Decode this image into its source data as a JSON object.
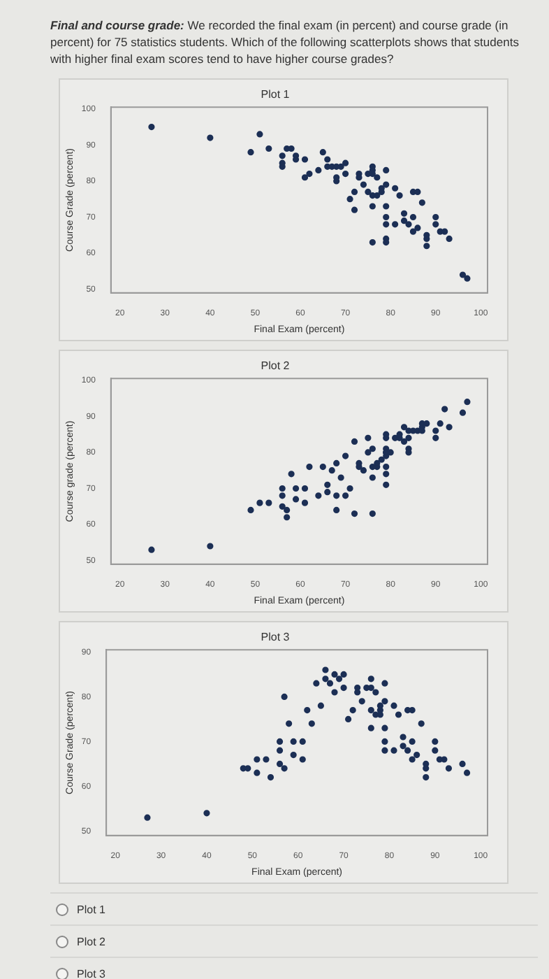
{
  "chart_data": [
    {
      "type": "other",
      "title": "Final and course grade:",
      "annotations": [
        "We recorded the final exam (in percent) and course grade (in percent) for 75 statistics students. Which of the following scatterplots shows that students with higher final exam scores tend to have higher course grades?"
      ]
    },
    {
      "type": "scatter",
      "title": "Plot 1",
      "xlabel": "Final Exam (percent)",
      "ylabel": "Course Grade (percent)",
      "color": "#1c2f55",
      "marker": "circle",
      "grid": false,
      "xlim": [
        18,
        101.5
      ],
      "xticks": [
        20,
        30,
        40,
        50,
        60,
        70,
        80,
        90,
        100
      ],
      "ylim": [
        49,
        100.5
      ],
      "yticks": [
        50,
        60,
        70,
        80,
        90,
        100
      ],
      "x": [
        27,
        40,
        49,
        51,
        53,
        56,
        56,
        56,
        57,
        58,
        59,
        59,
        61,
        61,
        62,
        64,
        65,
        66,
        66,
        67,
        68,
        69,
        68,
        68,
        70,
        70,
        71,
        72,
        72,
        73,
        73,
        74,
        75,
        76,
        76,
        76,
        75,
        76,
        77,
        77,
        78,
        78,
        76,
        76,
        79,
        79,
        79,
        79,
        79,
        79,
        79,
        81,
        81,
        82,
        83,
        83,
        84,
        85,
        86,
        85,
        85,
        86,
        87,
        88,
        88,
        88,
        90,
        90,
        91,
        92,
        93,
        96,
        97
      ],
      "values": [
        95,
        92,
        88,
        93,
        89,
        87,
        85,
        84,
        89,
        89,
        87,
        86,
        86,
        81,
        82,
        83,
        88,
        86,
        84,
        84,
        84,
        84,
        81,
        80,
        85,
        82,
        75,
        77,
        72,
        82,
        81,
        79,
        82,
        82,
        84,
        83,
        77,
        76,
        76,
        81,
        78,
        77,
        73,
        63,
        83,
        79,
        73,
        70,
        68,
        64,
        63,
        78,
        68,
        76,
        71,
        69,
        68,
        77,
        77,
        70,
        66,
        67,
        74,
        65,
        64,
        62,
        70,
        68,
        66,
        66,
        64,
        54,
        53
      ]
    },
    {
      "type": "scatter",
      "title": "Plot 2",
      "xlabel": "Final Exam (percent)",
      "ylabel": "Course grade (percent)",
      "color": "#1c2f55",
      "marker": "circle",
      "grid": false,
      "xlim": [
        18,
        101.5
      ],
      "xticks": [
        20,
        30,
        40,
        50,
        60,
        70,
        80,
        90,
        100
      ],
      "ylim": [
        49,
        100.5
      ],
      "yticks": [
        50,
        60,
        70,
        80,
        90,
        100
      ],
      "x": [
        27,
        40,
        49,
        51,
        53,
        56,
        56,
        56,
        57,
        57,
        58,
        59,
        59,
        61,
        61,
        62,
        64,
        65,
        66,
        66,
        67,
        68,
        68,
        68,
        69,
        70,
        70,
        71,
        72,
        72,
        73,
        73,
        74,
        75,
        75,
        76,
        76,
        76,
        76,
        77,
        77,
        78,
        79,
        79,
        79,
        79,
        79,
        79,
        79,
        79,
        79,
        80,
        81,
        82,
        82,
        83,
        83,
        84,
        84,
        84,
        84,
        85,
        86,
        87,
        88,
        87,
        87,
        90,
        90,
        91,
        92,
        93,
        96,
        97
      ],
      "values": [
        53,
        54,
        64,
        66,
        66,
        70,
        68,
        65,
        64,
        62,
        74,
        70,
        67,
        70,
        66,
        76,
        68,
        76,
        71,
        69,
        75,
        77,
        68,
        64,
        73,
        79,
        68,
        70,
        83,
        63,
        77,
        76,
        75,
        84,
        80,
        76,
        73,
        63,
        81,
        77,
        76,
        78,
        81,
        80,
        79,
        85,
        84,
        80,
        76,
        74,
        71,
        80,
        84,
        84,
        85,
        83,
        87,
        86,
        84,
        81,
        80,
        86,
        86,
        88,
        88,
        86,
        87,
        84,
        86,
        88,
        92,
        87,
        91,
        94
      ]
    },
    {
      "type": "scatter",
      "title": "Plot 3",
      "xlabel": "Final Exam (percent)",
      "ylabel": "Course Grade (percent)",
      "color": "#1c2f55",
      "marker": "circle",
      "grid": false,
      "xlim": [
        18,
        101.5
      ],
      "xticks": [
        20,
        30,
        40,
        50,
        60,
        70,
        80,
        90,
        100
      ],
      "ylim": [
        49,
        90.5
      ],
      "yticks": [
        50,
        60,
        70,
        80,
        90
      ],
      "x": [
        27,
        40,
        48,
        49,
        51,
        51,
        53,
        54,
        56,
        56,
        56,
        57,
        57,
        58,
        59,
        59,
        61,
        61,
        62,
        63,
        64,
        65,
        66,
        66,
        67,
        68,
        68,
        69,
        70,
        70,
        71,
        72,
        73,
        73,
        74,
        75,
        76,
        76,
        76,
        77,
        78,
        76,
        77,
        78,
        78,
        79,
        79,
        79,
        79,
        79,
        81,
        81,
        82,
        83,
        83,
        84,
        84,
        85,
        85,
        85,
        86,
        87,
        88,
        88,
        88,
        90,
        90,
        91,
        92,
        93,
        96,
        97
      ],
      "values": [
        53,
        54,
        64,
        64,
        66,
        63,
        66,
        62,
        70,
        68,
        65,
        64,
        80,
        74,
        70,
        67,
        70,
        66,
        77,
        74,
        83,
        78,
        86,
        84,
        83,
        85,
        81,
        84,
        85,
        82,
        75,
        77,
        82,
        81,
        79,
        82,
        82,
        84,
        77,
        76,
        76,
        73,
        81,
        78,
        77,
        83,
        79,
        73,
        70,
        68,
        78,
        68,
        76,
        71,
        69,
        68,
        77,
        77,
        70,
        66,
        67,
        74,
        65,
        64,
        62,
        70,
        68,
        66,
        66,
        64,
        65,
        63
      ]
    },
    {
      "type": "other",
      "annotations": [
        "Plot 1",
        "Plot 2",
        "Plot 3"
      ]
    }
  ]
}
